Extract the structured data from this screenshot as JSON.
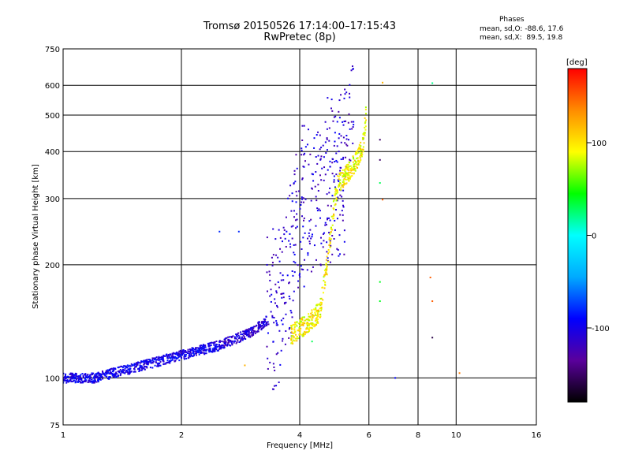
{
  "title": "Tromsø 20150526 17:14:00–17:15:43",
  "subtitle": "RwPretec (8p)",
  "phase_stats": {
    "heading": "Phases",
    "o_line": "mean, sd,O: -88.6, 17.6",
    "x_line": "mean, sd,X:  89.5, 19.8"
  },
  "chart_data": {
    "type": "scatter",
    "title": "Tromsø 20150526 17:14:00–17:15:43",
    "xlabel": "Frequency [MHz]",
    "ylabel": "Stationary phase Virtual Height [km]",
    "xscale": "log",
    "yscale": "log",
    "xlim": [
      1,
      16
    ],
    "ylim": [
      75,
      750
    ],
    "x_ticks": [
      1,
      2,
      4,
      6,
      8,
      10,
      16
    ],
    "y_ticks": [
      75,
      100,
      200,
      300,
      400,
      500,
      600,
      750
    ],
    "grid": true,
    "colorbar": {
      "label": "[deg]",
      "range": [
        -180,
        180
      ],
      "ticks": [
        100,
        0,
        -100
      ],
      "colormap": [
        "#000000",
        "#5a009c",
        "#0000ff",
        "#00aaff",
        "#00ffff",
        "#00ff00",
        "#ffff00",
        "#ff8c00",
        "#ff0000"
      ]
    },
    "series": [
      {
        "mode": "O",
        "color": "#1a4fe6",
        "curve": [
          [
            1.0,
            100
          ],
          [
            1.2,
            100
          ],
          [
            1.5,
            106
          ],
          [
            2.0,
            115
          ],
          [
            2.5,
            122
          ],
          [
            3.0,
            132
          ],
          [
            3.3,
            142
          ],
          [
            3.6,
            160
          ],
          [
            3.8,
            200
          ],
          [
            3.9,
            260
          ],
          [
            4.1,
            300
          ],
          [
            4.5,
            320
          ],
          [
            5.0,
            340
          ],
          [
            5.2,
            360
          ],
          [
            5.3,
            420
          ],
          [
            5.4,
            500
          ],
          [
            5.5,
            600
          ]
        ]
      },
      {
        "mode": "X",
        "color": "#e6e600",
        "curve": [
          [
            3.8,
            130
          ],
          [
            4.2,
            140
          ],
          [
            4.5,
            150
          ],
          [
            4.6,
            175
          ],
          [
            4.7,
            200
          ],
          [
            4.8,
            240
          ],
          [
            4.9,
            290
          ],
          [
            5.0,
            330
          ],
          [
            5.3,
            350
          ],
          [
            5.6,
            380
          ],
          [
            5.8,
            420
          ],
          [
            5.9,
            500
          ]
        ]
      }
    ],
    "outliers": [
      {
        "x": 6.5,
        "y": 610,
        "phase": 120
      },
      {
        "x": 6.4,
        "y": 430,
        "phase": -150
      },
      {
        "x": 6.4,
        "y": 380,
        "phase": -150
      },
      {
        "x": 6.5,
        "y": 298,
        "phase": 150
      },
      {
        "x": 6.4,
        "y": 330,
        "phase": 30
      },
      {
        "x": 6.4,
        "y": 180,
        "phase": 40
      },
      {
        "x": 6.4,
        "y": 160,
        "phase": 40
      },
      {
        "x": 8.7,
        "y": 608,
        "phase": 20
      },
      {
        "x": 8.6,
        "y": 185,
        "phase": 150
      },
      {
        "x": 8.7,
        "y": 160,
        "phase": 150
      },
      {
        "x": 8.7,
        "y": 128,
        "phase": -160
      },
      {
        "x": 10.2,
        "y": 103,
        "phase": 140
      },
      {
        "x": 7.0,
        "y": 100,
        "phase": -90
      },
      {
        "x": 2.5,
        "y": 245,
        "phase": -80
      },
      {
        "x": 2.8,
        "y": 245,
        "phase": -80
      },
      {
        "x": 2.9,
        "y": 108,
        "phase": 120
      },
      {
        "x": 4.3,
        "y": 125,
        "phase": 30
      }
    ]
  }
}
